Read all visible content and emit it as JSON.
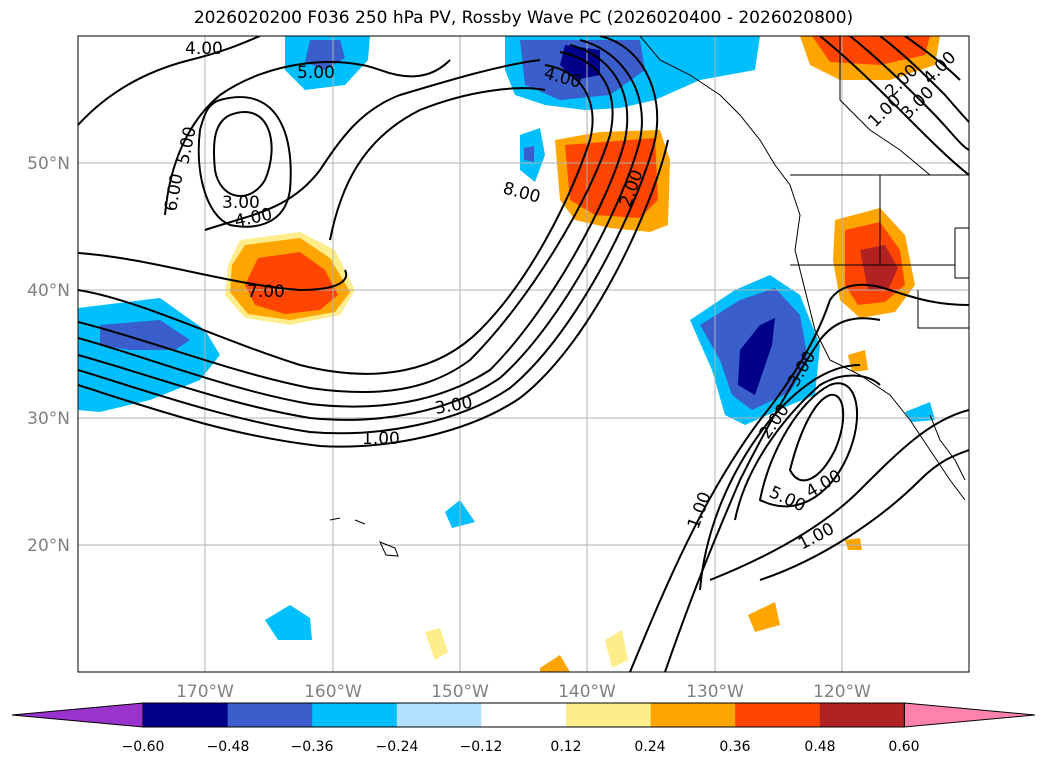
{
  "title": "2026020200 F036 250 hPa PV, Rossby Wave PC (2026020400 - 2026020800)",
  "lat_labels": [
    "50°N",
    "40°N",
    "30°N",
    "20°N"
  ],
  "lon_labels": [
    "170°W",
    "160°W",
    "150°W",
    "140°W",
    "130°W",
    "120°W"
  ],
  "lat_values": [
    50,
    40,
    30,
    20
  ],
  "lon_values": [
    -170,
    -160,
    -150,
    -140,
    -130,
    -120
  ],
  "extent": {
    "lon_min": -180,
    "lon_max": -110,
    "lat_min": 10,
    "lat_max": 60
  },
  "colorbar": {
    "tick_labels": [
      "−0.60",
      "−0.48",
      "−0.36",
      "−0.24",
      "−0.12",
      "0.12",
      "0.24",
      "0.36",
      "0.48",
      "0.60"
    ],
    "colors": [
      "#9a32cd",
      "#00008b",
      "#3a5fcd",
      "#00bfff",
      "#b0e2ff",
      "#ffffff",
      "#ffec8b",
      "#ffa500",
      "#ff4500",
      "#b22222",
      "#ff82ab"
    ]
  },
  "contour_labels": [
    {
      "text": "4.00"
    },
    {
      "text": "5.00"
    },
    {
      "text": "5.00"
    },
    {
      "text": "6.00"
    },
    {
      "text": "3.00"
    },
    {
      "text": "4.00"
    },
    {
      "text": "7.00"
    },
    {
      "text": "4.00"
    },
    {
      "text": "8.00"
    },
    {
      "text": "2.00"
    },
    {
      "text": "3.00"
    },
    {
      "text": "1.00"
    },
    {
      "text": "2.00"
    },
    {
      "text": "3.00"
    },
    {
      "text": "1.00"
    },
    {
      "text": "5.00"
    },
    {
      "text": "4.00"
    },
    {
      "text": "1.00"
    },
    {
      "text": "1.00"
    },
    {
      "text": "2.00"
    },
    {
      "text": "3.00"
    },
    {
      "text": "4.00"
    }
  ]
}
